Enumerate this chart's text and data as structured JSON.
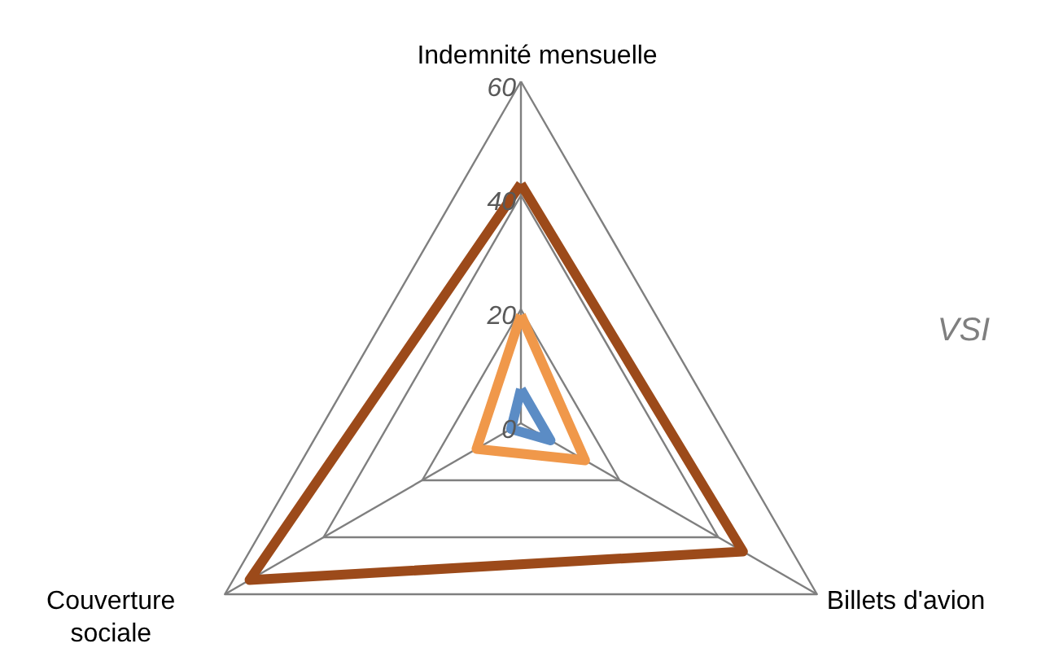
{
  "chart_data": {
    "type": "radar",
    "categories": [
      "Indemnité mensuelle",
      "Billets d'avion",
      "Couverture sociale"
    ],
    "series": [
      {
        "color": "#5b8cc5",
        "values": [
          6,
          6,
          2
        ]
      },
      {
        "color": "#f0984a",
        "values": [
          19,
          13,
          9
        ]
      },
      {
        "color": "#9c4a1a",
        "values": [
          42,
          45,
          55
        ]
      }
    ],
    "ylim": [
      0,
      60
    ],
    "yticks": [
      0,
      20,
      40,
      60
    ],
    "grid": true,
    "annotations": [
      "VSI"
    ]
  }
}
